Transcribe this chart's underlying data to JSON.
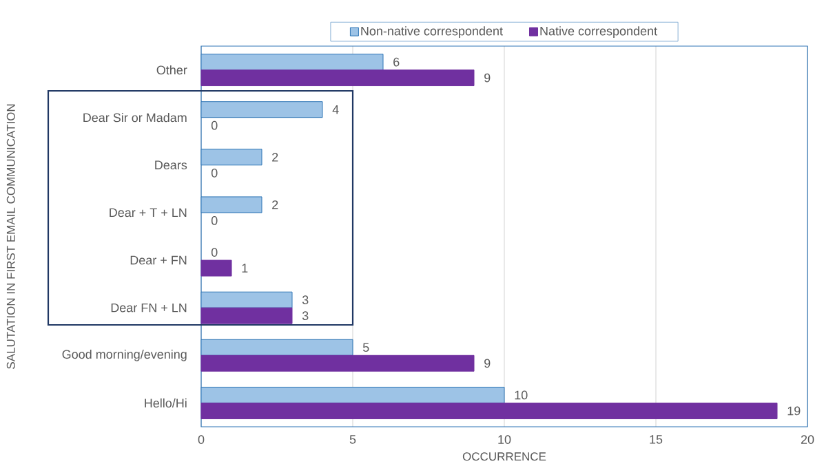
{
  "chart_data": {
    "type": "bar",
    "orientation": "horizontal",
    "xlabel": "OCCURRENCE",
    "ylabel": "SALUTATION IN FIRST EMAIL COMMUNICATION",
    "categories": [
      "Other",
      "Dear Sir or Madam",
      "Dears",
      "Dear + T + LN",
      "Dear + FN",
      "Dear FN + LN",
      "Good morning/evening",
      "Hello/Hi"
    ],
    "series": [
      {
        "name": "Non-native correspondent",
        "color": "#9dc3e6",
        "values": [
          6,
          4,
          2,
          2,
          0,
          3,
          5,
          10
        ]
      },
      {
        "name": "Native correspondent",
        "color": "#7030a0",
        "values": [
          9,
          0,
          0,
          0,
          1,
          3,
          9,
          19
        ]
      }
    ],
    "xlim": [
      0,
      20
    ],
    "xticks": [
      0,
      5,
      10,
      15,
      20
    ],
    "grid": "x",
    "legend": "top",
    "data_labels": true
  }
}
